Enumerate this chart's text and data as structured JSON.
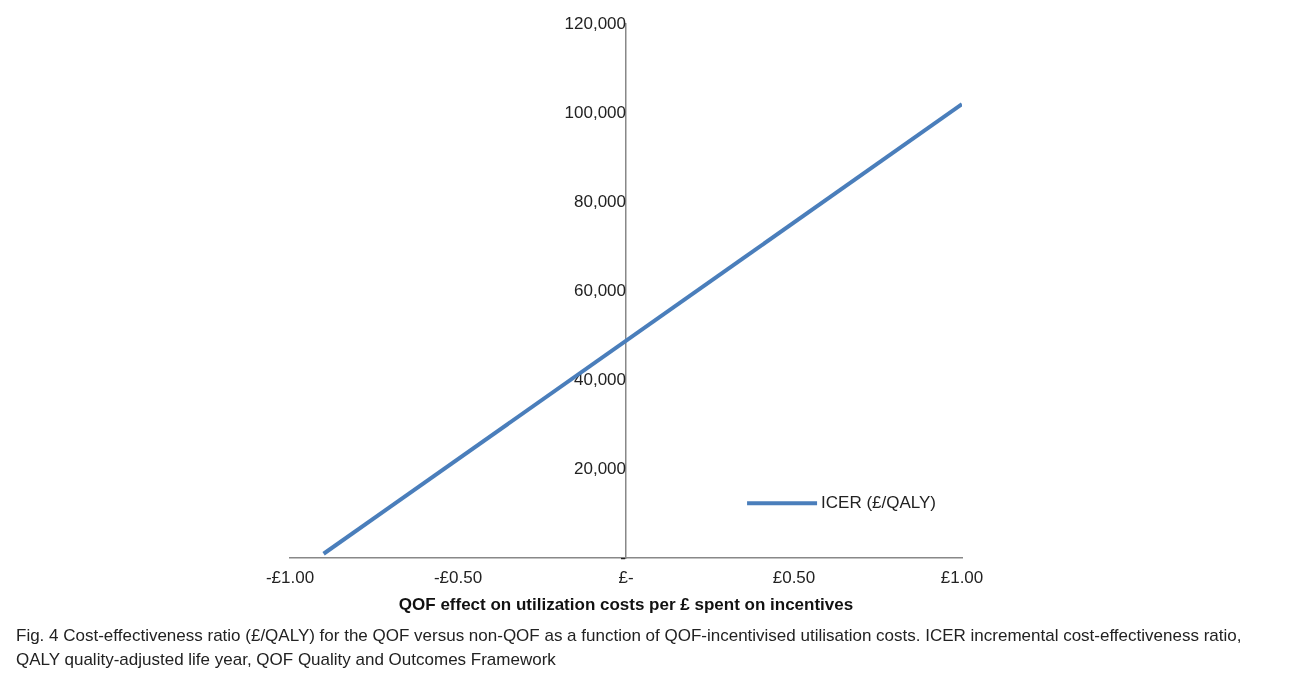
{
  "chart_data": {
    "type": "line",
    "xlabel": "QOF effect on utilization costs per £ spent on incentives",
    "annotations": [
      "Fig. 4 Cost-effectiveness ratio (£/QALY) for the QOF versus non-QOF as a function of QOF-incentivised utilisation costs. ICER incremental cost-effectiveness ratio, QALY quality-adjusted life year, QOF Quality and Outcomes Framework"
    ],
    "series": [
      {
        "name": "ICER (£/QALY)",
        "color": "#4a7ebb",
        "x": [
          -0.9,
          1
        ],
        "values": [
          1000,
          102000
        ]
      }
    ],
    "xlim": [
      -1,
      1
    ],
    "xticks": [
      {
        "value": -1,
        "label": "-£1.00"
      },
      {
        "value": -0.5,
        "label": "-£0.50"
      },
      {
        "value": 0,
        "label": "£-"
      },
      {
        "value": 0.5,
        "label": "£0.50"
      },
      {
        "value": 1,
        "label": "£1.00"
      }
    ],
    "ylim": [
      0,
      120000
    ],
    "yticks": [
      {
        "value": 0,
        "label": "-"
      },
      {
        "value": 20000,
        "label": "20,000"
      },
      {
        "value": 40000,
        "label": "40,000"
      },
      {
        "value": 60000,
        "label": "60,000"
      },
      {
        "value": 80000,
        "label": "80,000"
      },
      {
        "value": 100000,
        "label": "100,000"
      },
      {
        "value": 120000,
        "label": "120,000"
      }
    ],
    "grid": false,
    "legend": "bottom right",
    "marker": "none",
    "line_style": "solid"
  }
}
